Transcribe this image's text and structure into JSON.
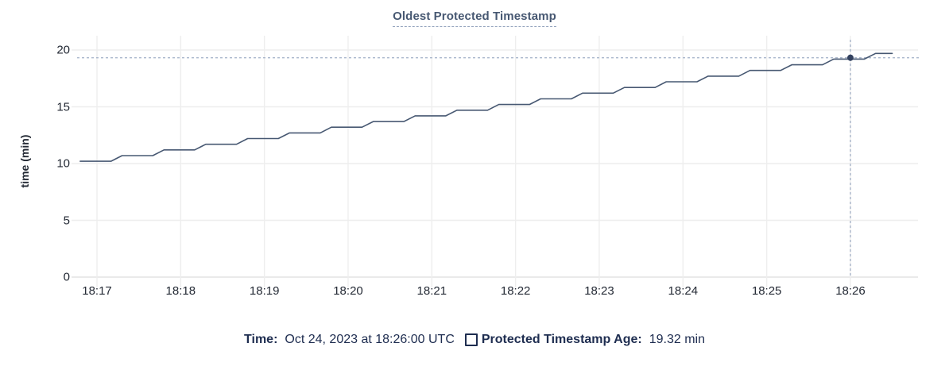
{
  "title": "Oldest Protected Timestamp",
  "footer": {
    "time_label": "Time:",
    "time_value": "Oct 24, 2023 at 18:26:00 UTC",
    "series_label": "Protected Timestamp Age:",
    "series_value": "19.32 min"
  },
  "colors": {
    "title_text": "#475872",
    "axis_text": "#242a35",
    "footer_text": "#1e2d50",
    "line": "#475872",
    "dot": "#33415f",
    "crosshair": "#a3b1c7",
    "grid": "#eeeeee",
    "grid_zero": "#e3e3e3"
  },
  "chart_data": {
    "type": "line",
    "title": "Oldest Protected Timestamp",
    "xlabel": "",
    "ylabel": "time (min)",
    "ylim": [
      0,
      20
    ],
    "y_ticks": [
      0,
      5,
      10,
      15,
      20
    ],
    "x_ticks": [
      "18:17",
      "18:18",
      "18:19",
      "18:20",
      "18:21",
      "18:22",
      "18:23",
      "18:24",
      "18:25",
      "18:26"
    ],
    "grid": true,
    "legend_position": "bottom",
    "series": [
      {
        "name": "Protected Timestamp Age",
        "unit": "min",
        "points": [
          [
            "18:16:48",
            10.2
          ],
          [
            "18:17:10",
            10.2
          ],
          [
            "18:17:18",
            10.7
          ],
          [
            "18:17:40",
            10.7
          ],
          [
            "18:17:48",
            11.2
          ],
          [
            "18:18:10",
            11.2
          ],
          [
            "18:18:18",
            11.7
          ],
          [
            "18:18:40",
            11.7
          ],
          [
            "18:18:48",
            12.2
          ],
          [
            "18:19:10",
            12.2
          ],
          [
            "18:19:18",
            12.7
          ],
          [
            "18:19:40",
            12.7
          ],
          [
            "18:19:48",
            13.2
          ],
          [
            "18:20:10",
            13.2
          ],
          [
            "18:20:18",
            13.7
          ],
          [
            "18:20:40",
            13.7
          ],
          [
            "18:20:48",
            14.2
          ],
          [
            "18:21:10",
            14.2
          ],
          [
            "18:21:18",
            14.7
          ],
          [
            "18:21:40",
            14.7
          ],
          [
            "18:21:48",
            15.2
          ],
          [
            "18:22:10",
            15.2
          ],
          [
            "18:22:18",
            15.7
          ],
          [
            "18:22:40",
            15.7
          ],
          [
            "18:22:48",
            16.2
          ],
          [
            "18:23:10",
            16.2
          ],
          [
            "18:23:18",
            16.7
          ],
          [
            "18:23:40",
            16.7
          ],
          [
            "18:23:48",
            17.2
          ],
          [
            "18:24:10",
            17.2
          ],
          [
            "18:24:18",
            17.7
          ],
          [
            "18:24:40",
            17.7
          ],
          [
            "18:24:48",
            18.2
          ],
          [
            "18:25:10",
            18.2
          ],
          [
            "18:25:18",
            18.7
          ],
          [
            "18:25:40",
            18.7
          ],
          [
            "18:25:48",
            19.2
          ],
          [
            "18:26:10",
            19.2
          ],
          [
            "18:26:18",
            19.7
          ],
          [
            "18:26:30",
            19.7
          ]
        ]
      }
    ],
    "highlight": {
      "time": "18:26:00",
      "value": 19.32,
      "time_label": "Oct 24, 2023 at 18:26:00 UTC",
      "value_label": "19.32 min"
    }
  }
}
